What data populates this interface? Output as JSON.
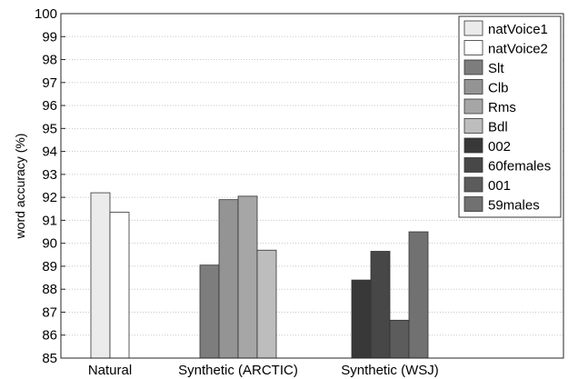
{
  "chart_data": {
    "type": "bar",
    "title": "",
    "xlabel": "",
    "ylabel": "word accuracy (%)",
    "ylim": [
      85,
      100
    ],
    "yticks": [
      85,
      86,
      87,
      88,
      89,
      90,
      91,
      92,
      93,
      94,
      95,
      96,
      97,
      98,
      99,
      100
    ],
    "grid": true,
    "legend_position": "top-right",
    "groups": [
      {
        "label": "Natural",
        "bars": [
          {
            "series": "natVoice1",
            "value": 92.2
          },
          {
            "series": "natVoice2",
            "value": 91.35
          }
        ]
      },
      {
        "label": "Synthetic (ARCTIC)",
        "bars": [
          {
            "series": "Slt",
            "value": 89.05
          },
          {
            "series": "Clb",
            "value": 91.9
          },
          {
            "series": "Rms",
            "value": 92.05
          },
          {
            "series": "Bdl",
            "value": 89.7
          }
        ]
      },
      {
        "label": "Synthetic (WSJ)",
        "bars": [
          {
            "series": "002",
            "value": 88.4
          },
          {
            "series": "60females",
            "value": 89.65
          },
          {
            "series": "001",
            "value": 86.65
          },
          {
            "series": "59males",
            "value": 90.5
          }
        ]
      }
    ],
    "series": [
      {
        "name": "natVoice1",
        "color": "#ebebeb"
      },
      {
        "name": "natVoice2",
        "color": "#ffffff"
      },
      {
        "name": "Slt",
        "color": "#7d7d7d"
      },
      {
        "name": "Clb",
        "color": "#949494"
      },
      {
        "name": "Rms",
        "color": "#a6a6a6"
      },
      {
        "name": "Bdl",
        "color": "#bdbdbd"
      },
      {
        "name": "002",
        "color": "#383838"
      },
      {
        "name": "60females",
        "color": "#474747"
      },
      {
        "name": "001",
        "color": "#5c5c5c"
      },
      {
        "name": "59males",
        "color": "#717171"
      }
    ]
  }
}
